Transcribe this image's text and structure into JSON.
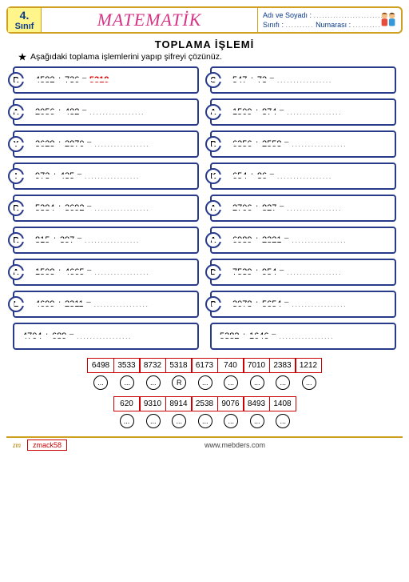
{
  "header": {
    "grade_number": "4.",
    "grade_label": "Sınıf",
    "title": "MATEMATİK",
    "name_label": "Adı ve Soyadı :",
    "class_label": "Sınıfı :",
    "number_label": "Numarası :",
    "dotted": ".........................."
  },
  "section_title": "TOPLAMA  İŞLEMİ",
  "instruction": "Aşağıdaki toplama işlemlerini yapıp şifreyi çözünüz.",
  "problems_left": [
    {
      "letter": "R",
      "expr": "4582 + 736 =",
      "answer": "5318"
    },
    {
      "letter": "A",
      "expr": "2056 + 482 =",
      "answer": ""
    },
    {
      "letter": "Y",
      "expr": "3628 + 2870 =",
      "answer": ""
    },
    {
      "letter": "I",
      "expr": "973 + 435 =",
      "answer": ""
    },
    {
      "letter": "R",
      "expr": "5384 + 3692 =",
      "answer": ""
    },
    {
      "letter": "R",
      "expr": "815 + 397 =",
      "answer": ""
    },
    {
      "letter": "A",
      "expr": "1508 + 4665 =",
      "answer": ""
    },
    {
      "letter": "L",
      "expr": "4699 + 2311 =",
      "answer": ""
    },
    {
      "letter": "",
      "expr": "4704 + 689 =",
      "answer": ""
    }
  ],
  "problems_right": [
    {
      "letter": "S",
      "expr": "547 + 73 =",
      "answer": ""
    },
    {
      "letter": "A",
      "expr": "1509 + 874 =",
      "answer": ""
    },
    {
      "letter": "R",
      "expr": "6356 + 2558 =",
      "answer": ""
    },
    {
      "letter": "K",
      "expr": "654 + 86 =",
      "answer": ""
    },
    {
      "letter": "A",
      "expr": "2706 + 827 =",
      "answer": ""
    },
    {
      "letter": "A",
      "expr": "6989 + 2321 =",
      "answer": ""
    },
    {
      "letter": "D",
      "expr": "7539 + 954 =",
      "answer": ""
    },
    {
      "letter": "P",
      "expr": "3078 + 5654 =",
      "answer": ""
    },
    {
      "letter": "",
      "expr": "5382 + 1646 =",
      "answer": ""
    }
  ],
  "cipher_row1": [
    {
      "num": "6498",
      "letter": "..."
    },
    {
      "num": "3533",
      "letter": "..."
    },
    {
      "num": "8732",
      "letter": "..."
    },
    {
      "num": "5318",
      "letter": "R"
    },
    {
      "num": "6173",
      "letter": "..."
    },
    {
      "num": "740",
      "letter": "..."
    },
    {
      "num": "7010",
      "letter": "..."
    },
    {
      "num": "2383",
      "letter": "..."
    },
    {
      "num": "1212",
      "letter": "..."
    }
  ],
  "cipher_row2": [
    {
      "num": "620",
      "letter": "..."
    },
    {
      "num": "9310",
      "letter": "..."
    },
    {
      "num": "8914",
      "letter": "..."
    },
    {
      "num": "2538",
      "letter": "..."
    },
    {
      "num": "9076",
      "letter": "..."
    },
    {
      "num": "8493",
      "letter": "..."
    },
    {
      "num": "1408",
      "letter": "..."
    }
  ],
  "footer": {
    "zm": "zm",
    "page_num": "zmack58",
    "url": "www.mebders.com"
  },
  "colors": {
    "border_main": "#2a3a8a",
    "accent_red": "#d00",
    "header_border": "#d0a020",
    "badge_bg": "#fff58a",
    "title_pink": "#d63384"
  }
}
